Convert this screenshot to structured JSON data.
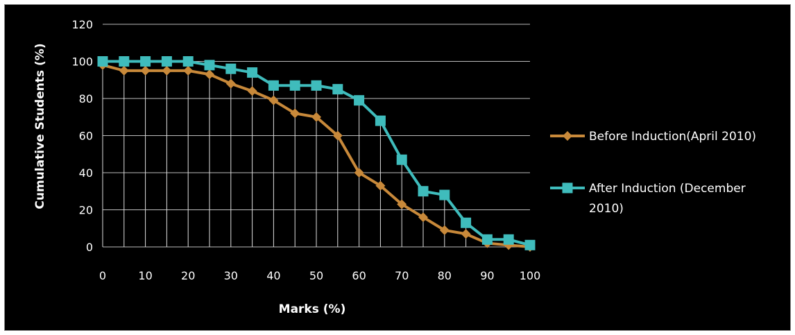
{
  "chart_data": {
    "type": "line",
    "xlabel": "Marks (%)",
    "ylabel": "Cumulative Students (%)",
    "ylim": [
      0,
      120
    ],
    "yticks": [
      0,
      20,
      40,
      60,
      80,
      100,
      120
    ],
    "x": [
      0,
      5,
      10,
      15,
      20,
      25,
      30,
      35,
      40,
      45,
      50,
      55,
      60,
      65,
      70,
      75,
      80,
      85,
      90,
      95,
      100
    ],
    "xtick_labels": [
      "0",
      "10",
      "20",
      "30",
      "40",
      "50",
      "60",
      "70",
      "80",
      "90",
      "100"
    ],
    "grid": "horizontal major gridlines and vertical drop lines",
    "legend_position": "right",
    "series": [
      {
        "name": "Before Induction(April 2010)",
        "legend_lines": [
          "Before Induction(April 2010)"
        ],
        "color": "#c8893a",
        "marker": "diamond",
        "values": [
          98,
          95,
          95,
          95,
          95,
          93,
          88,
          84,
          79,
          72,
          70,
          60,
          40,
          33,
          23,
          16,
          9,
          7,
          2,
          1,
          0
        ]
      },
      {
        "name": "After Induction (December 2010)",
        "legend_lines": [
          "After Induction (December",
          "2010)"
        ],
        "color": "#3fbcbc",
        "marker": "square",
        "values": [
          100,
          100,
          100,
          100,
          100,
          98,
          96,
          94,
          87,
          87,
          87,
          85,
          79,
          68,
          47,
          30,
          28,
          13,
          4,
          4,
          1
        ]
      }
    ]
  }
}
